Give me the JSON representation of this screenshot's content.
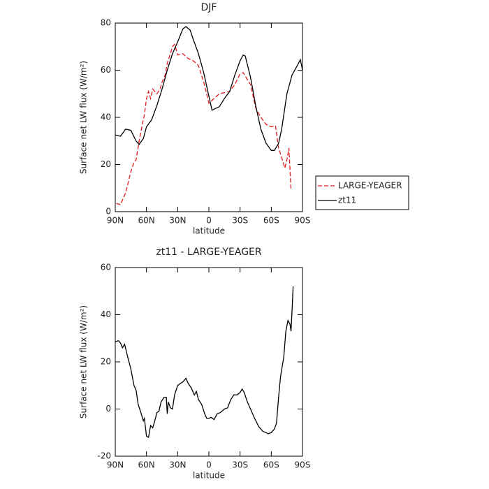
{
  "chart_data": [
    {
      "type": "line",
      "title": "DJF",
      "xlabel": "latitude",
      "ylabel": "Surface net LW flux (W/m²)",
      "xlim": [
        90,
        -90
      ],
      "xticks": [
        {
          "value": 90,
          "label": "90N"
        },
        {
          "value": 60,
          "label": "60N"
        },
        {
          "value": 30,
          "label": "30N"
        },
        0,
        {
          "value": -30,
          "label": "30S"
        },
        {
          "value": -60,
          "label": "60S"
        },
        {
          "value": -90,
          "label": "90S"
        }
      ],
      "ylim": [
        0,
        80
      ],
      "yticks": [
        0,
        20,
        40,
        60,
        80
      ],
      "legend": "right",
      "series": [
        {
          "name": "LARGE-YEAGER",
          "color": "#e31a1c",
          "dash": true,
          "x": [
            89,
            85,
            82,
            80,
            75,
            72,
            70,
            67,
            64,
            62,
            60,
            58,
            56,
            54,
            50,
            47,
            45,
            42,
            40,
            37,
            35,
            33,
            30,
            25,
            20,
            15,
            10,
            5,
            0,
            -5,
            -10,
            -15,
            -20,
            -25,
            -30,
            -33,
            -37,
            -40,
            -45,
            -50,
            -55,
            -60,
            -64,
            -67,
            -70,
            -73,
            -75,
            -77,
            -79
          ],
          "values": [
            3.5,
            3,
            6,
            8,
            17,
            21,
            22,
            30,
            37,
            41,
            48,
            51,
            48,
            52,
            50,
            52,
            55,
            58,
            63,
            67,
            70,
            71,
            66.5,
            67,
            65,
            64,
            62,
            55,
            46,
            48,
            50,
            50.5,
            51,
            54,
            58.5,
            59,
            56,
            54,
            44,
            40,
            37,
            36,
            36.5,
            27,
            23,
            18.5,
            22,
            27,
            9
          ]
        },
        {
          "name": "zt11",
          "color": "#000000",
          "dash": false,
          "x": [
            90,
            85,
            80,
            75,
            70,
            67,
            63,
            60,
            55,
            50,
            45,
            40,
            35,
            30,
            25,
            22,
            18,
            15,
            10,
            5,
            0,
            -3,
            -5,
            -10,
            -15,
            -20,
            -25,
            -30,
            -33,
            -35,
            -40,
            -45,
            -50,
            -55,
            -60,
            -63,
            -67,
            -70,
            -75,
            -80,
            -85,
            -88,
            -90
          ],
          "values": [
            32.5,
            32,
            35,
            34.5,
            30,
            28.5,
            31,
            36,
            39,
            45,
            52,
            60,
            67,
            72,
            77.5,
            78.5,
            77,
            73,
            67,
            59,
            49,
            43,
            43.5,
            44.5,
            48,
            51,
            58,
            64,
            66.5,
            66,
            57,
            45,
            35,
            29,
            26,
            26,
            29,
            35,
            50,
            58,
            62,
            64.5,
            60
          ]
        }
      ]
    },
    {
      "type": "line",
      "title": "zt11 - LARGE-YEAGER",
      "xlabel": "latitude",
      "ylabel": "Surface net LW flux (W/m²)",
      "xlim": [
        90,
        -90
      ],
      "xticks": [
        {
          "value": 90,
          "label": "90N"
        },
        {
          "value": 60,
          "label": "60N"
        },
        {
          "value": 30,
          "label": "30N"
        },
        0,
        {
          "value": -30,
          "label": "30S"
        },
        {
          "value": -60,
          "label": "60S"
        },
        {
          "value": -90,
          "label": "90S"
        }
      ],
      "ylim": [
        -20,
        60
      ],
      "yticks": [
        -20,
        0,
        20,
        40,
        60
      ],
      "series": [
        {
          "color": "#000000",
          "dash": false,
          "x": [
            90,
            87,
            85,
            83,
            81,
            78,
            75,
            72,
            70,
            68,
            65,
            63,
            62,
            60,
            58,
            56,
            54,
            52,
            50,
            48,
            46,
            43,
            41,
            40,
            39,
            37,
            35,
            33,
            30,
            27,
            25,
            22,
            20,
            17,
            14,
            12,
            10,
            7,
            4,
            2,
            0,
            -2,
            -5,
            -8,
            -11,
            -15,
            -18,
            -21,
            -24,
            -27,
            -30,
            -32,
            -34,
            -37,
            -40,
            -44,
            -48,
            -52,
            -55,
            -57,
            -60,
            -63,
            -65,
            -67,
            -69,
            -72,
            -74,
            -76,
            -78,
            -79,
            -80,
            -81
          ],
          "values": [
            28.5,
            29,
            28,
            26,
            27.5,
            22,
            17,
            10,
            8,
            2,
            -2,
            -5,
            -4,
            -11.5,
            -12,
            -7,
            -8,
            -5,
            -1.5,
            -1,
            3,
            5,
            5,
            -2,
            3,
            0.5,
            0,
            6,
            10,
            11,
            11.5,
            13,
            11,
            9,
            6,
            7.5,
            4,
            2,
            -2,
            -4,
            -4,
            -3.5,
            -4.5,
            -2,
            -1.5,
            0,
            0.5,
            4,
            6,
            6,
            7,
            8.5,
            7,
            3,
            0,
            -4,
            -7.5,
            -9.5,
            -10,
            -10.5,
            -10,
            -8.5,
            -6,
            5,
            14,
            22,
            33,
            37.5,
            36,
            33,
            42,
            52
          ]
        }
      ]
    }
  ]
}
